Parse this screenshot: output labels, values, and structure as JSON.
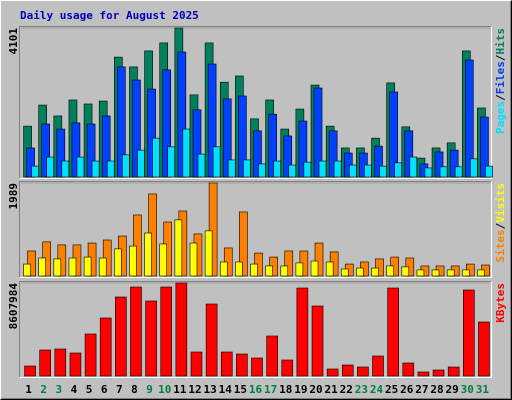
{
  "chart_data": [
    {
      "type": "bar",
      "title": "Daily usage for August 2025",
      "categories": [
        "1",
        "2",
        "3",
        "4",
        "5",
        "6",
        "7",
        "8",
        "9",
        "10",
        "11",
        "12",
        "13",
        "14",
        "15",
        "16",
        "17",
        "18",
        "19",
        "20",
        "21",
        "22",
        "23",
        "24",
        "25",
        "26",
        "27",
        "28",
        "29",
        "30",
        "31"
      ],
      "category_colors": [
        "#000000",
        "#008040",
        "#008040",
        "#000000",
        "#000000",
        "#000000",
        "#000000",
        "#000000",
        "#008040",
        "#008040",
        "#000000",
        "#000000",
        "#000000",
        "#000000",
        "#000000",
        "#008040",
        "#008040",
        "#000000",
        "#000000",
        "#000000",
        "#000000",
        "#000000",
        "#008040",
        "#008040",
        "#000000",
        "#000000",
        "#000000",
        "#000000",
        "#000000",
        "#008040",
        "#008040"
      ],
      "ylim": [
        0,
        4101
      ],
      "yticks": [
        4101
      ],
      "separator": "/",
      "series": [
        {
          "name": "Pages",
          "color": "#00e0ff",
          "values": [
            300,
            550,
            440,
            550,
            440,
            440,
            610,
            740,
            1070,
            830,
            1320,
            630,
            830,
            470,
            470,
            360,
            440,
            330,
            410,
            440,
            440,
            330,
            330,
            300,
            390,
            550,
            250,
            280,
            280,
            500,
            300
          ]
        },
        {
          "name": "Files",
          "color": "#0040ff",
          "values": [
            800,
            1460,
            1320,
            1490,
            1460,
            1680,
            3030,
            2670,
            2420,
            2950,
            3440,
            1850,
            3110,
            2150,
            2230,
            1270,
            1730,
            1130,
            1540,
            2450,
            1270,
            660,
            660,
            850,
            2340,
            1270,
            360,
            690,
            740,
            3220,
            1650
          ]
        },
        {
          "name": "Hits",
          "color": "#00805c",
          "values": [
            1400,
            1980,
            1680,
            2120,
            2010,
            2090,
            3300,
            3030,
            3470,
            3690,
            4101,
            2260,
            3690,
            2610,
            2780,
            1600,
            2120,
            1320,
            1870,
            2530,
            1400,
            800,
            800,
            1070,
            2590,
            1380,
            520,
            800,
            940,
            3470,
            1900
          ]
        }
      ]
    },
    {
      "type": "bar",
      "ylim": [
        0,
        1989
      ],
      "yticks": [
        1989
      ],
      "separator": "/",
      "series": [
        {
          "name": "Sites",
          "color": "#ff8000",
          "values": [
            535,
            730,
            665,
            665,
            705,
            770,
            855,
            1305,
            1755,
            1155,
            1390,
            900,
            1989,
            600,
            1370,
            490,
            405,
            535,
            535,
            705,
            515,
            255,
            300,
            365,
            405,
            385,
            215,
            215,
            215,
            255,
            235
          ]
        },
        {
          "name": "Visits",
          "color": "#ffff00",
          "values": [
            255,
            385,
            365,
            385,
            405,
            385,
            580,
            640,
            920,
            685,
            1200,
            705,
            965,
            300,
            300,
            255,
            215,
            215,
            280,
            320,
            300,
            150,
            170,
            170,
            215,
            195,
            130,
            130,
            130,
            130,
            130
          ]
        }
      ]
    },
    {
      "type": "bar",
      "ylim": [
        0,
        8607984
      ],
      "yticks": [
        8607984
      ],
      "series": [
        {
          "name": "KBytes",
          "color": "#ff0000",
          "values": [
            925600,
            2406500,
            2499100,
            2128900,
            3887500,
            5368400,
            7312200,
            8237800,
            6941900,
            8237800,
            8607984,
            2221400,
            6664200,
            2221400,
            2036300,
            1666100,
            3702400,
            1480900,
            8145200,
            6479100,
            647900,
            1018100,
            833000,
            1851200,
            8145200,
            1203300,
            370200,
            555400,
            833000,
            7960100,
            4998200
          ]
        }
      ]
    }
  ]
}
